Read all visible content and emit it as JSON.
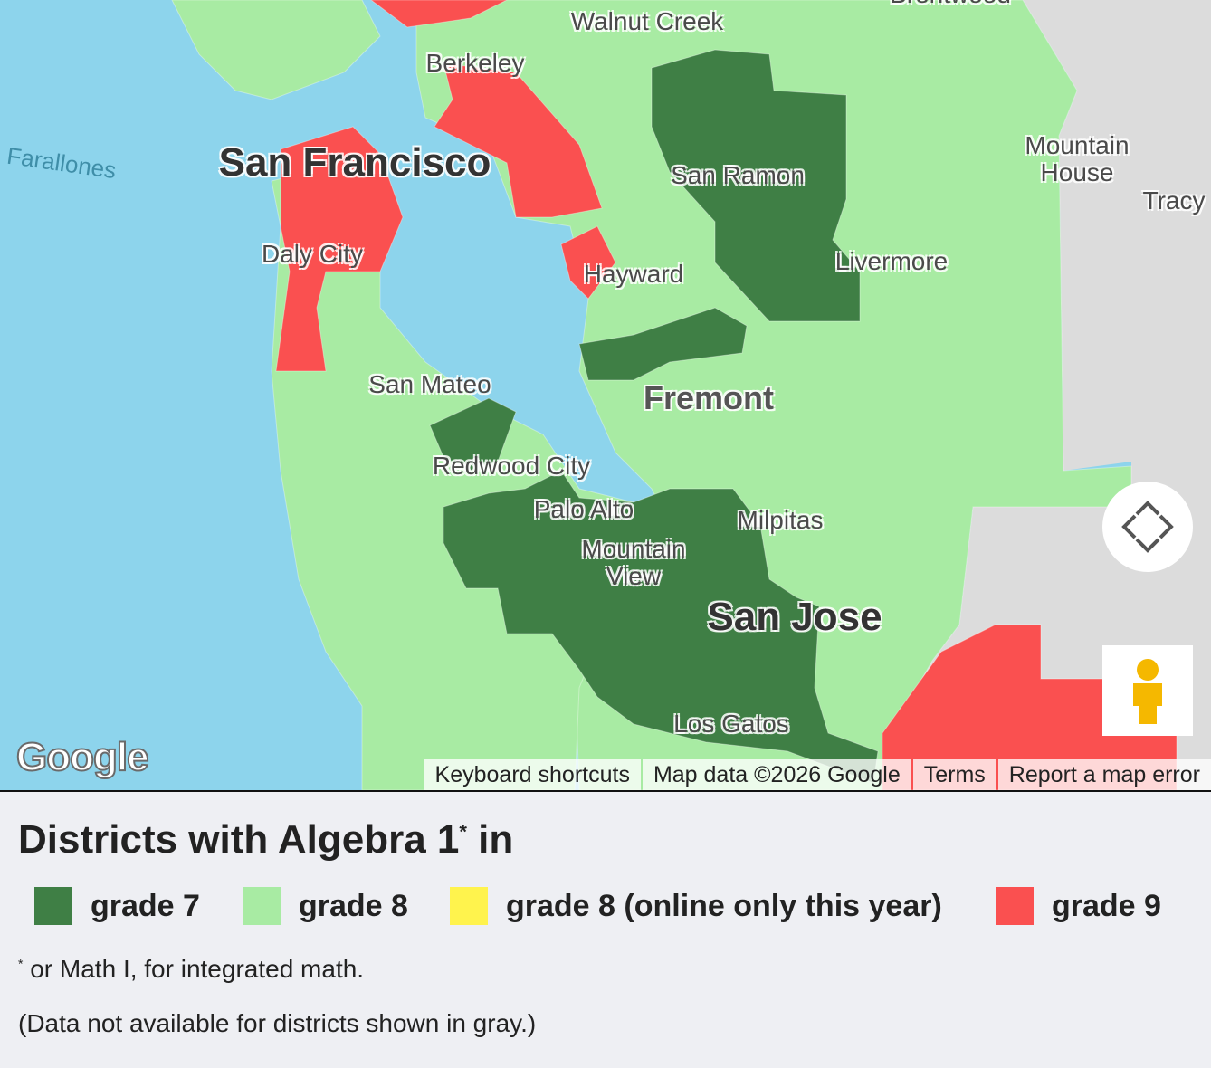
{
  "map": {
    "labels": [
      "Brentwood",
      "Walnut Creek",
      "Berkeley",
      "Farallones",
      "San Francisco",
      "San Ramon",
      "Mountain House",
      "Tracy",
      "Daly City",
      "Hayward",
      "Livermore",
      "San Mateo",
      "Fremont",
      "Redwood City",
      "Palo Alto",
      "Milpitas",
      "Mountain View",
      "San Jose",
      "Los Gatos"
    ],
    "logo": "Google",
    "attribution": [
      "Keyboard shortcuts",
      "Map data ©2026 Google",
      "Terms",
      "Report a map error"
    ]
  },
  "legend": {
    "title": "Districts with Algebra 1",
    "title_mark": "*",
    "title_end": "in",
    "items": [
      {
        "name": "grade 7",
        "color": "#3f7f45"
      },
      {
        "name": "grade 8",
        "color": "#a8eba3"
      },
      {
        "name": "grade 8 (online only this year)",
        "color": "#fff34d"
      },
      {
        "name": "grade 9",
        "color": "#fa5050"
      }
    ],
    "footnote_mark": "*",
    "footnote": "or Math I, for integrated math.",
    "note": "(Data not available for districts shown in gray.)"
  }
}
